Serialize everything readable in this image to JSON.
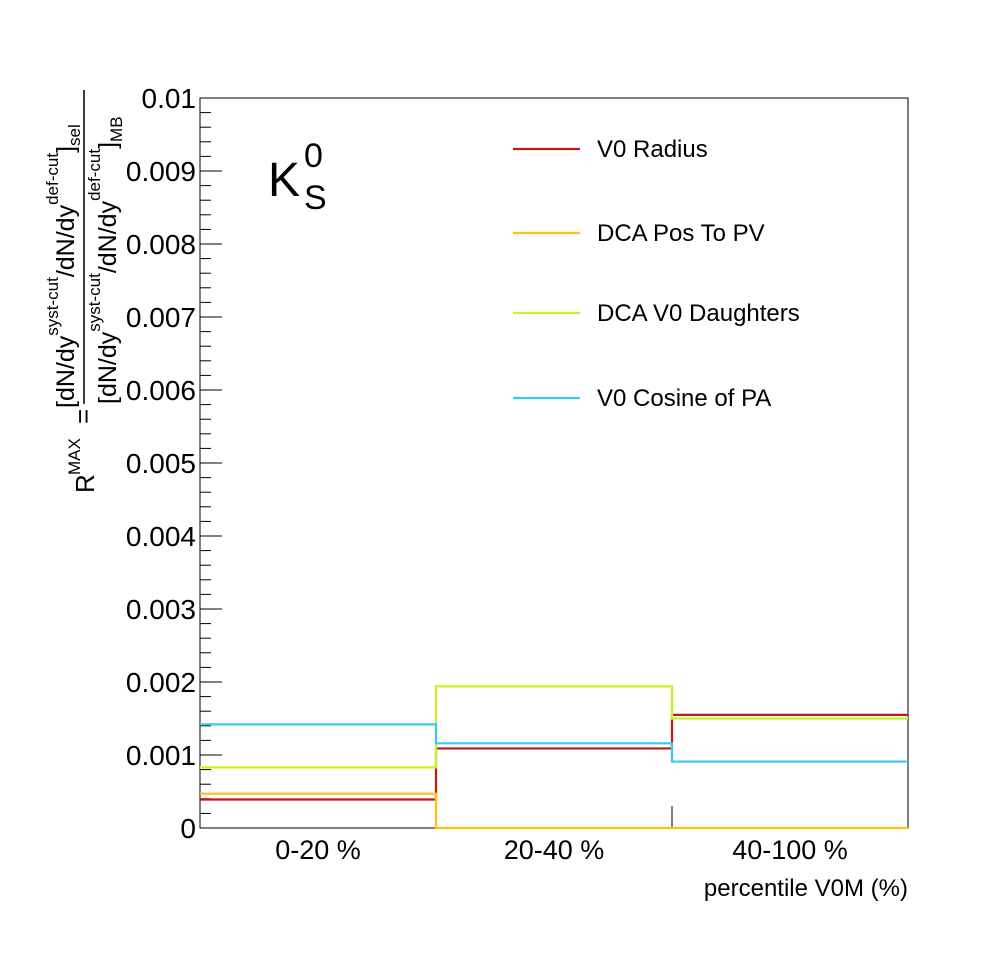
{
  "chart_data": {
    "type": "step",
    "categories": [
      "0-20 %",
      "20-40 %",
      "40-100 %"
    ],
    "xlabel": "percentile V0M (%)",
    "ylabel": {
      "lhs": "R",
      "lhs_sup": "MAX",
      "equals": "=",
      "num_open": "[dN/dy",
      "num_sup1": "syst-cut",
      "num_mid": "/dN/dy",
      "num_sup2": "def-cut",
      "num_close": "]",
      "num_sub": "sel",
      "den_open": "[dN/dy",
      "den_sup1": "syst-cut",
      "den_mid": "/dN/dy",
      "den_sup2": "def-cut",
      "den_close": "]",
      "den_sub": "MB"
    },
    "ylim": [
      0,
      0.01
    ],
    "yticks": [
      {
        "value": 0,
        "label": "0"
      },
      {
        "value": 0.001,
        "label": "0.001"
      },
      {
        "value": 0.002,
        "label": "0.002"
      },
      {
        "value": 0.003,
        "label": "0.003"
      },
      {
        "value": 0.004,
        "label": "0.004"
      },
      {
        "value": 0.005,
        "label": "0.005"
      },
      {
        "value": 0.006,
        "label": "0.006"
      },
      {
        "value": 0.007,
        "label": "0.007"
      },
      {
        "value": 0.008,
        "label": "0.008"
      },
      {
        "value": 0.009,
        "label": "0.009"
      },
      {
        "value": 0.01,
        "label": "0.01"
      }
    ],
    "annotation": {
      "base": "K",
      "sup": "0",
      "sub": "S"
    },
    "legend_position": "top-right",
    "series": [
      {
        "name": "V0 Radius",
        "color": "#c0171c",
        "values": [
          0.00039,
          0.00109,
          0.00155
        ]
      },
      {
        "name": "DCA Pos To PV",
        "color": "#ffc20f",
        "values": [
          0.00047,
          0.0,
          0.0
        ]
      },
      {
        "name": "DCA V0 Daughters",
        "color": "#c5f520",
        "values": [
          0.00083,
          0.00194,
          0.0015
        ]
      },
      {
        "name": "V0 Cosine of PA",
        "color": "#33ccf0",
        "values": [
          0.00142,
          0.00116,
          0.00091
        ]
      }
    ]
  }
}
